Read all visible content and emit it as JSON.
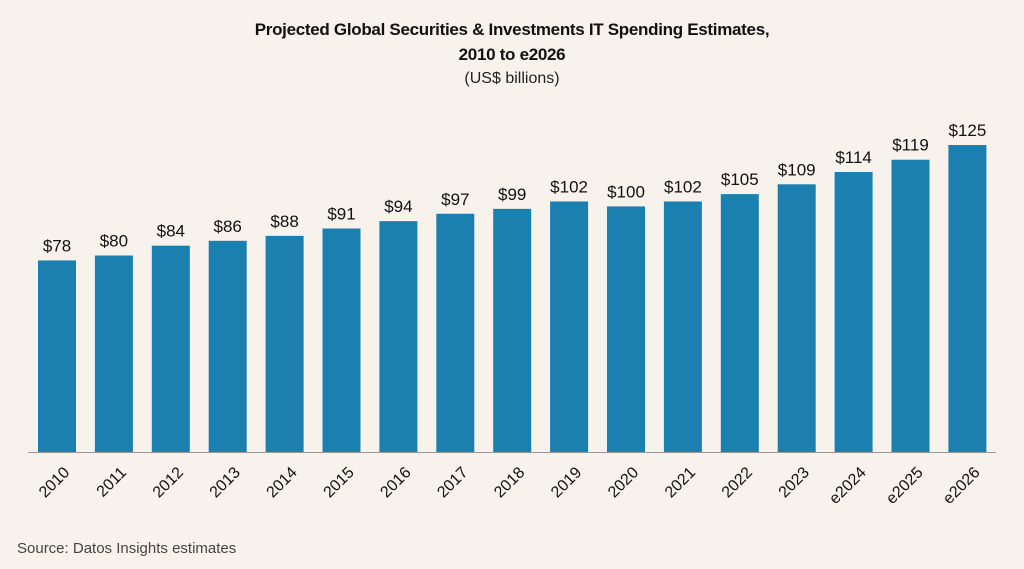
{
  "chart_data": {
    "type": "bar",
    "title": "Projected Global Securities & Investments IT Spending Estimates,",
    "title_line2": "2010 to e2026",
    "subtitle": "(US$ billions)",
    "categories": [
      "2010",
      "2011",
      "2012",
      "2013",
      "2014",
      "2015",
      "2016",
      "2017",
      "2018",
      "2019",
      "2020",
      "2021",
      "2022",
      "2023",
      "e2024",
      "e2025",
      "e2026"
    ],
    "values": [
      78,
      80,
      84,
      86,
      88,
      91,
      94,
      97,
      99,
      102,
      100,
      102,
      105,
      109,
      114,
      119,
      125
    ],
    "value_prefix": "$",
    "xlabel": "",
    "ylabel": "",
    "ylim": [
      0,
      125
    ],
    "grid": false,
    "legend": "none",
    "bar_color": "#1b80b0",
    "source": "Source: Datos Insights estimates"
  }
}
